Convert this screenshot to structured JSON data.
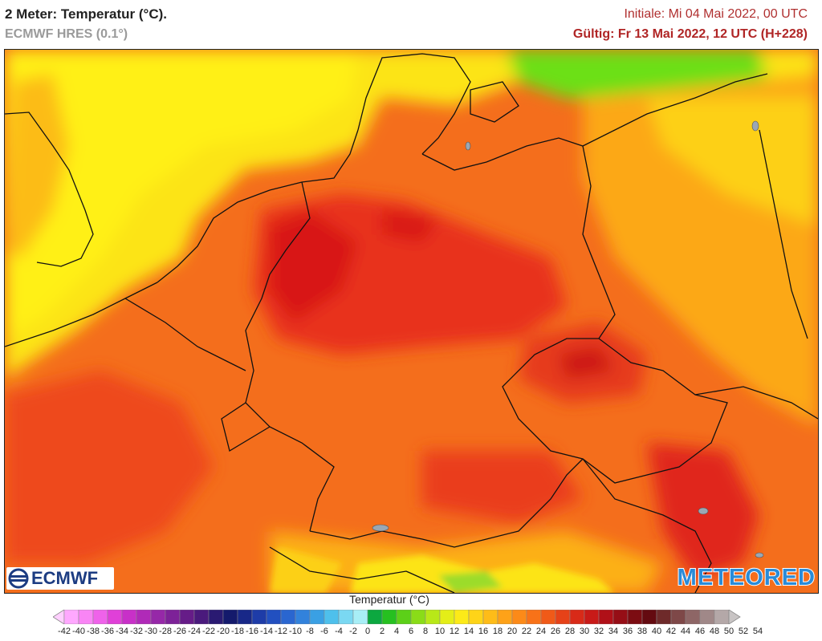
{
  "header": {
    "title": "2 Meter: Temperatur (°C).",
    "model": "ECMWF HRES (0.1°)",
    "initial": "Initiale: Mi 04 Mai 2022, 00 UTC",
    "valid": "Gültig: Fr 13 Mai 2022, 12 UTC (H+228)"
  },
  "logos": {
    "left": "ECMWF",
    "right": "METEORED"
  },
  "legend": {
    "title": "Temperatur (°C)",
    "ticks": [
      "-42",
      "-40",
      "-38",
      "-36",
      "-34",
      "-32",
      "-30",
      "-28",
      "-26",
      "-24",
      "-22",
      "-20",
      "-18",
      "-16",
      "-14",
      "-12",
      "-10",
      "-8",
      "-6",
      "-4",
      "-2",
      "0",
      "2",
      "4",
      "6",
      "8",
      "10",
      "12",
      "14",
      "16",
      "18",
      "20",
      "22",
      "24",
      "26",
      "28",
      "30",
      "32",
      "34",
      "36",
      "38",
      "40",
      "42",
      "44",
      "46",
      "48",
      "50",
      "52",
      "54"
    ],
    "colors": [
      "#ffd0ff",
      "#ffa8ff",
      "#f985f5",
      "#ef62ea",
      "#e040d8",
      "#c830c8",
      "#b02ab8",
      "#9628a8",
      "#7d2298",
      "#661c88",
      "#4a1a7c",
      "#2a1a72",
      "#141a6c",
      "#182888",
      "#1e3ca8",
      "#2250c0",
      "#2a66d0",
      "#3282dc",
      "#3aa0e4",
      "#4ec0ec",
      "#7ad8f2",
      "#a8eef6",
      "#0ca840",
      "#26c020",
      "#5cd018",
      "#8adc18",
      "#b8e818",
      "#e4ee18",
      "#fcea18",
      "#fed418",
      "#febc18",
      "#fea218",
      "#fc8a18",
      "#f87218",
      "#f05a18",
      "#e64218",
      "#d82a18",
      "#c81a18",
      "#b01018",
      "#960e16",
      "#7c0c12",
      "#640a10",
      "#6e2a2a",
      "#7e4848",
      "#8e6666",
      "#a08888",
      "#b4a8a8",
      "#c8c4c4"
    ]
  }
}
